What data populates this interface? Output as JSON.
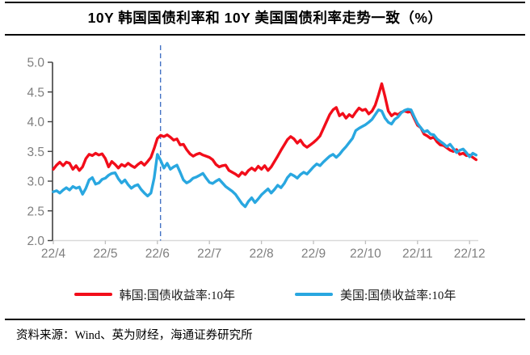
{
  "title": "10Y 韩国国债利率和 10Y 美国国债利率走势一致（%）",
  "footer": {
    "source": "资料来源：Wind、英为财经，海通证券研究所"
  },
  "chart_data": {
    "type": "line",
    "title": "10Y 韩国国债利率和 10Y 美国国债利率走势一致（%）",
    "unit": "%",
    "legend_position": "bottom",
    "grid": false,
    "x_axis": {
      "categories": [
        "22/4",
        "22/5",
        "22/6",
        "22/7",
        "22/8",
        "22/9",
        "22/10",
        "22/11",
        "22/12"
      ]
    },
    "y_axis": {
      "min": 2.0,
      "max": 5.0,
      "tick_step": 0.5,
      "tick_labels": [
        "2.0",
        "2.5",
        "3.0",
        "3.5",
        "4.0",
        "4.5",
        "5.0"
      ]
    },
    "ylim": [
      2.0,
      5.0
    ],
    "marker_line": {
      "at_category": "22/6",
      "x_month_index": 2.06,
      "style": "dashed",
      "color": "#4472C4"
    },
    "x_start": 0,
    "x_step_months": 0.0625,
    "series": [
      {
        "name": "韩国:国债收益率:10年",
        "color": "#F20D1A",
        "values": [
          3.2,
          3.27,
          3.32,
          3.26,
          3.32,
          3.3,
          3.2,
          3.26,
          3.18,
          3.24,
          3.38,
          3.45,
          3.43,
          3.47,
          3.44,
          3.46,
          3.38,
          3.24,
          3.33,
          3.28,
          3.22,
          3.28,
          3.25,
          3.3,
          3.26,
          3.23,
          3.28,
          3.32,
          3.27,
          3.33,
          3.4,
          3.55,
          3.72,
          3.77,
          3.75,
          3.78,
          3.74,
          3.69,
          3.71,
          3.61,
          3.62,
          3.53,
          3.46,
          3.42,
          3.45,
          3.47,
          3.44,
          3.42,
          3.4,
          3.36,
          3.28,
          3.24,
          3.26,
          3.27,
          3.18,
          3.15,
          3.12,
          3.08,
          3.15,
          3.11,
          3.18,
          3.22,
          3.18,
          3.25,
          3.2,
          3.26,
          3.18,
          3.24,
          3.33,
          3.42,
          3.52,
          3.61,
          3.7,
          3.75,
          3.71,
          3.64,
          3.69,
          3.61,
          3.57,
          3.61,
          3.65,
          3.7,
          3.76,
          3.88,
          4.0,
          4.12,
          4.2,
          4.24,
          4.1,
          4.14,
          4.06,
          4.12,
          4.08,
          4.16,
          4.23,
          4.19,
          4.21,
          4.13,
          4.18,
          4.28,
          4.45,
          4.64,
          4.42,
          4.18,
          4.1,
          4.14,
          4.12,
          4.16,
          4.18,
          4.16,
          4.17,
          4.05,
          3.94,
          3.9,
          3.79,
          3.76,
          3.72,
          3.74,
          3.66,
          3.61,
          3.6,
          3.56,
          3.52,
          3.5,
          3.53,
          3.45,
          3.47,
          3.43,
          3.44,
          3.4,
          3.36
        ]
      },
      {
        "name": "美国:国债收益率:10年",
        "color": "#29A7E0",
        "values": [
          2.82,
          2.84,
          2.8,
          2.85,
          2.89,
          2.85,
          2.91,
          2.88,
          2.9,
          2.78,
          2.88,
          3.02,
          3.06,
          2.95,
          2.97,
          3.03,
          3.05,
          3.1,
          3.13,
          3.14,
          3.04,
          2.97,
          3.02,
          2.94,
          2.88,
          2.92,
          2.94,
          2.86,
          2.8,
          2.75,
          2.8,
          3.05,
          3.45,
          3.35,
          3.22,
          3.3,
          3.2,
          3.24,
          3.27,
          3.15,
          3.02,
          2.97,
          3.0,
          3.05,
          3.07,
          3.1,
          3.13,
          3.05,
          2.98,
          2.96,
          3.0,
          3.03,
          2.97,
          2.91,
          2.87,
          2.83,
          2.78,
          2.7,
          2.62,
          2.57,
          2.66,
          2.72,
          2.64,
          2.7,
          2.77,
          2.82,
          2.87,
          2.8,
          2.86,
          2.93,
          2.89,
          2.96,
          3.06,
          3.12,
          3.09,
          3.05,
          3.11,
          3.15,
          3.12,
          3.18,
          3.24,
          3.29,
          3.26,
          3.32,
          3.37,
          3.42,
          3.45,
          3.4,
          3.45,
          3.52,
          3.58,
          3.65,
          3.72,
          3.85,
          3.89,
          3.92,
          3.95,
          3.99,
          4.04,
          4.12,
          4.2,
          4.18,
          4.06,
          3.99,
          3.96,
          4.04,
          4.08,
          4.15,
          4.19,
          4.21,
          4.2,
          4.08,
          3.97,
          3.9,
          3.83,
          3.85,
          3.79,
          3.78,
          3.71,
          3.67,
          3.63,
          3.58,
          3.62,
          3.55,
          3.48,
          3.52,
          3.54,
          3.48,
          3.41,
          3.47,
          3.44
        ]
      }
    ]
  }
}
